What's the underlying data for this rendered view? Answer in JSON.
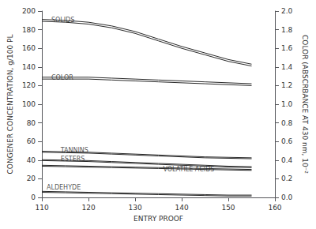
{
  "chart_data": {
    "type": "line",
    "xlabel": "ENTRY PROOF",
    "ylabel": "CONGENER CONCENTRATION, g/100 PL",
    "y2label": "COLOR (ABSCRBANCE AT 430 nm, 10⁻²",
    "x": [
      110,
      115,
      120,
      125,
      130,
      135,
      140,
      145,
      150,
      155
    ],
    "series": [
      {
        "color": "#2a2a2a",
        "values": [
          191,
          190,
          188,
          184,
          178,
          170,
          162,
          155,
          148,
          143
        ]
      },
      {
        "color": "#2a2a2a",
        "values": [
          189,
          188,
          186,
          182,
          176,
          168,
          160,
          153,
          146,
          141
        ]
      },
      {
        "color": "#2a2a2a",
        "values": [
          129,
          129,
          129,
          128,
          127,
          126,
          125,
          124,
          123,
          122
        ]
      },
      {
        "color": "#2a2a2a",
        "values": [
          127,
          127,
          127,
          126,
          125,
          124,
          123,
          122,
          121,
          120
        ]
      },
      {
        "color": "#2a2a2a",
        "values": [
          49.5,
          49,
          48.5,
          47.5,
          46.5,
          45.5,
          44.5,
          43.5,
          43,
          42.5
        ]
      },
      {
        "color": "#2a2a2a",
        "values": [
          48.5,
          48,
          47.5,
          46.5,
          45.5,
          44.5,
          43.5,
          42.5,
          42,
          41.5
        ]
      },
      {
        "color": "#2a2a2a",
        "values": [
          40.5,
          40,
          39.5,
          38.5,
          37.5,
          36.5,
          35.5,
          34.5,
          33.5,
          33
        ]
      },
      {
        "color": "#2a2a2a",
        "values": [
          39.5,
          39,
          38.5,
          37.5,
          36.5,
          35.5,
          34.5,
          33.5,
          32.5,
          32
        ]
      },
      {
        "color": "#2a2a2a",
        "values": [
          34.5,
          34,
          33.5,
          33,
          32.5,
          32,
          31.5,
          31,
          30.5,
          30
        ]
      },
      {
        "color": "#2a2a2a",
        "values": [
          33.5,
          33,
          32.5,
          32,
          31.5,
          31,
          30.5,
          30,
          29.5,
          29
        ]
      },
      {
        "color": "#2a2a2a",
        "values": [
          6.5,
          6,
          5.5,
          5,
          4.5,
          4,
          3.5,
          3,
          2.5,
          2.5
        ]
      },
      {
        "color": "#2a2a2a",
        "values": [
          5.5,
          5,
          4.5,
          4,
          3.5,
          3,
          2.5,
          2,
          1.5,
          1.5
        ]
      }
    ],
    "xlim": [
      110,
      160
    ],
    "xticks": [
      110,
      120,
      130,
      140,
      150,
      160
    ],
    "ylim": [
      0,
      200
    ],
    "yticks": [
      0,
      20,
      40,
      60,
      80,
      100,
      120,
      140,
      160,
      180,
      200
    ],
    "y2lim": [
      0.0,
      2.0
    ],
    "y2ticks": [
      {
        "value": 0,
        "label": "0.0"
      },
      0.2,
      0.4,
      0.6,
      0.8,
      {
        "value": 1,
        "label": "1.0"
      },
      1.2,
      1.4,
      1.6,
      1.8,
      {
        "value": 2,
        "label": "2.0"
      }
    ],
    "annotations": [
      {
        "text": "SOLIDS",
        "x": 112,
        "y": 187,
        "color": "#2a2a2a"
      },
      {
        "text": "COLOR",
        "x": 112,
        "y": 125,
        "color": "#2a2a2a"
      },
      {
        "text": "TANNINS",
        "x": 114,
        "y": 47,
        "color": "#2a2a2a"
      },
      {
        "text": "ESTERS",
        "x": 114,
        "y": 38,
        "color": "#2a2a2a"
      },
      {
        "text": "VOLATILE ACIDS",
        "x": 136,
        "y": 27,
        "color": "#2a2a2a"
      },
      {
        "text": "ALDEHYDE",
        "x": 111,
        "y": 7.5,
        "color": "#2a2a2a"
      }
    ],
    "grid": false,
    "legend": false
  }
}
